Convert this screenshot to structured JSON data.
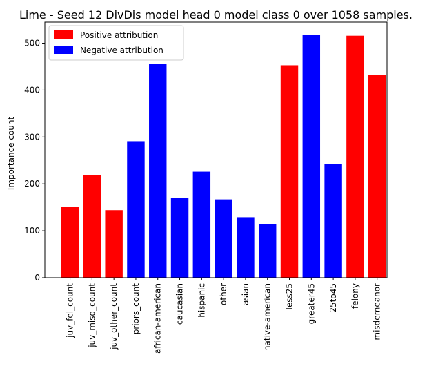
{
  "chart_data": {
    "type": "bar",
    "title": "Lime - Seed 12 DivDis model head 0 model class 0 over 1058 samples.",
    "xlabel": "",
    "ylabel": "Importance count",
    "ylim": [
      0,
      545
    ],
    "yticks": [
      0,
      100,
      200,
      300,
      400,
      500
    ],
    "grid": false,
    "legend_position": "top-left",
    "legend": [
      {
        "label": "Positive attribution",
        "color": "#ff0000"
      },
      {
        "label": "Negative attribution",
        "color": "#0000ff"
      }
    ],
    "categories": [
      "juv_fel_count",
      "juv_misd_count",
      "juv_other_count",
      "priors_count",
      "african-american",
      "caucasian",
      "hispanic",
      "other",
      "asian",
      "native-american",
      "less25",
      "greater45",
      "25to45",
      "felony",
      "misdemeanor"
    ],
    "values": [
      151,
      219,
      144,
      291,
      456,
      170,
      226,
      167,
      129,
      114,
      453,
      518,
      242,
      516,
      432
    ],
    "attribution": [
      "positive",
      "positive",
      "positive",
      "negative",
      "negative",
      "negative",
      "negative",
      "negative",
      "negative",
      "negative",
      "positive",
      "negative",
      "negative",
      "positive",
      "positive"
    ],
    "colors": {
      "positive": "#ff0000",
      "negative": "#0000ff"
    }
  }
}
